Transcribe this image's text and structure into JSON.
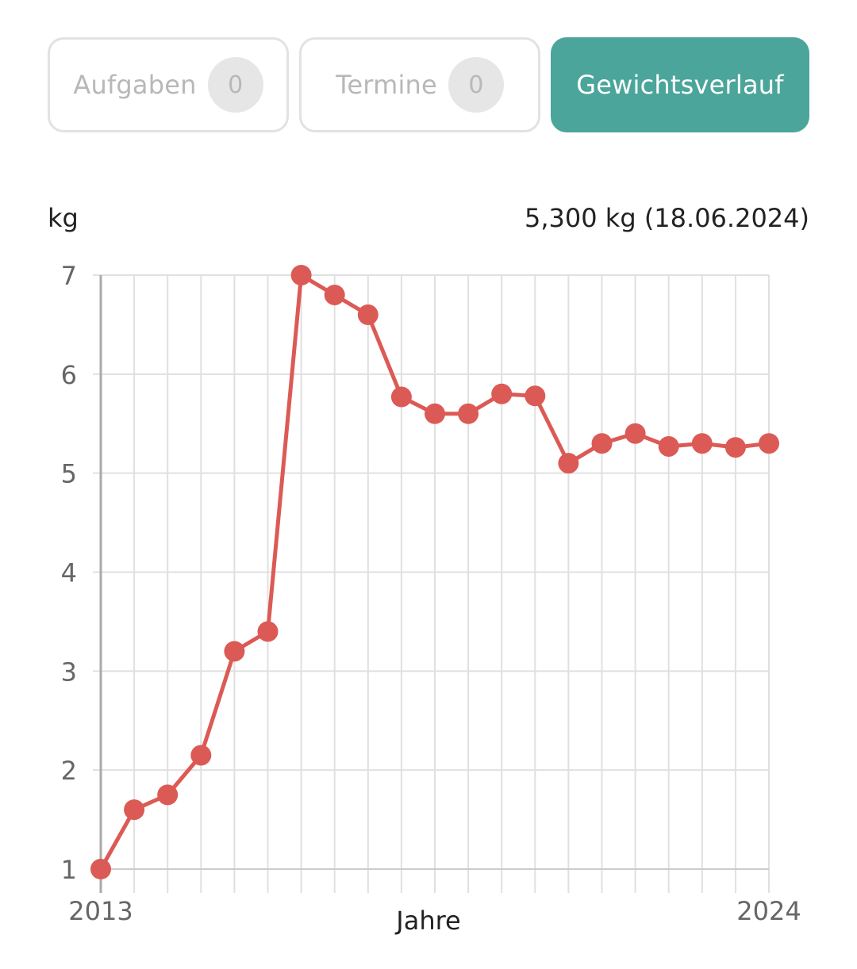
{
  "tabs": [
    {
      "label": "Aufgaben",
      "count": "0",
      "active": false
    },
    {
      "label": "Termine",
      "count": "0",
      "active": false
    },
    {
      "label": "Gewichtsverlauf",
      "active": true
    }
  ],
  "colors": {
    "accent": "#4ba59a",
    "series": "#dc5a55",
    "grid": "#e0e0e0",
    "axis": "#aaaaaa"
  },
  "chart_header": {
    "unit": "kg",
    "latest": "5,300 kg (18.06.2024)"
  },
  "chart_data": {
    "type": "line",
    "xlabel": "Jahre",
    "ylabel": "kg",
    "ylim": [
      1,
      7
    ],
    "yticks": [
      "1",
      "2",
      "3",
      "4",
      "5",
      "6",
      "7"
    ],
    "x_tick_labels": [
      "2013",
      "2024"
    ],
    "grid": true,
    "series": [
      {
        "values": [
          1.0,
          1.6,
          1.75,
          2.15,
          3.2,
          3.4,
          7.0,
          6.8,
          6.6,
          5.77,
          5.6,
          5.6,
          5.8,
          5.78,
          5.1,
          5.3,
          5.4,
          5.27,
          5.3,
          5.26,
          5.3
        ]
      }
    ]
  }
}
